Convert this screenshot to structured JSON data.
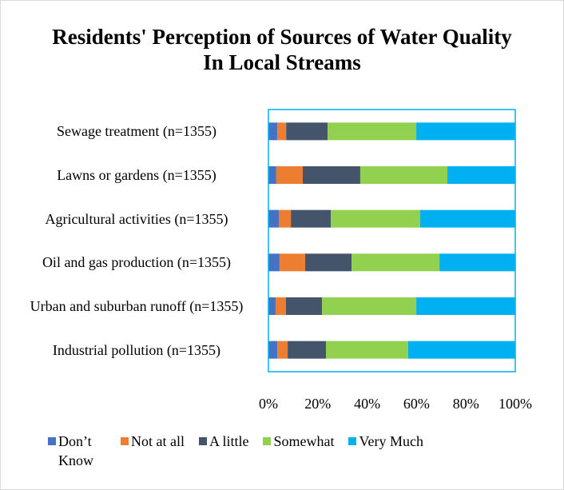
{
  "chart_data": {
    "type": "stacked_bar_horizontal",
    "title": "Residents' Perception of Sources of Water Quality In Local Streams",
    "categories": [
      "Sewage treatment (n=1355)",
      "Lawns or gardens (n=1355)",
      "Agricultural activities (n=1355)",
      "Oil and gas production (n=1355)",
      "Urban and suburban runoff (n=1355)",
      "Industrial pollution (n=1355)"
    ],
    "series": [
      {
        "name": "Don’t Know",
        "color": "#4472c4",
        "values": [
          3.6,
          3.2,
          4.2,
          4.5,
          2.9,
          3.6
        ]
      },
      {
        "name": "Not at all",
        "color": "#ed7d31",
        "values": [
          3.6,
          10.7,
          4.9,
          10.4,
          4.2,
          4.2
        ]
      },
      {
        "name": "A little",
        "color": "#44546a",
        "values": [
          16.8,
          23.3,
          16.2,
          18.8,
          14.6,
          15.5
        ]
      },
      {
        "name": "Somewhat",
        "color": "#92d050",
        "values": [
          35.9,
          35.3,
          36.2,
          35.6,
          38.2,
          33.3
        ]
      },
      {
        "name": "Very Much",
        "color": "#00b0f0",
        "values": [
          40.1,
          27.5,
          38.5,
          30.7,
          40.1,
          43.4
        ]
      }
    ],
    "xlim": [
      0,
      100
    ],
    "xticks": [
      {
        "value": 0,
        "label": "0%"
      },
      {
        "value": 20,
        "label": "20%"
      },
      {
        "value": 40,
        "label": "40%"
      },
      {
        "value": 60,
        "label": "60%"
      },
      {
        "value": 80,
        "label": "80%"
      },
      {
        "value": 100,
        "label": "100%"
      }
    ],
    "legend": "bottom"
  }
}
